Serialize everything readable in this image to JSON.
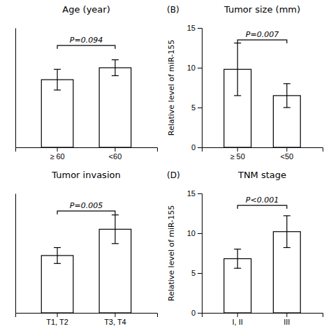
{
  "chart_data": [
    {
      "type": "bar",
      "title": "Age (year)",
      "categories": [
        "≥ 60",
        "<60"
      ],
      "values": [
        8.5,
        10.0
      ],
      "errors_up": [
        1.3,
        1.0
      ],
      "errors_down": [
        1.3,
        1.0
      ],
      "color": "#ffffff",
      "ylim": [
        0,
        15
      ],
      "tick_labels": "x",
      "annotations": [
        {
          "text": "P=0.094",
          "y": 12.8
        }
      ]
    },
    {
      "type": "bar",
      "title": "Tumor size (mm)",
      "label": "(B)",
      "categories": [
        "≥ 50",
        "<50"
      ],
      "values": [
        9.8,
        6.5
      ],
      "errors_up": [
        3.3,
        1.5
      ],
      "errors_down": [
        3.3,
        1.5
      ],
      "color": "#ffffff",
      "ylabel": "Relative level of miR-155",
      "ylim": [
        0,
        15
      ],
      "yticks": [
        0,
        5,
        10,
        15
      ],
      "annotations": [
        {
          "text": "P=0.007",
          "y": 13.5
        }
      ]
    },
    {
      "type": "bar",
      "title": "Tumor invasion",
      "categories": [
        "T1, T2",
        "T3, T4"
      ],
      "values": [
        7.2,
        10.5
      ],
      "errors_up": [
        1.0,
        1.8
      ],
      "errors_down": [
        1.0,
        1.8
      ],
      "color": "#ffffff",
      "ylim": [
        0,
        15
      ],
      "tick_labels": "x",
      "annotations": [
        {
          "text": "P=0.005",
          "y": 12.8
        }
      ]
    },
    {
      "type": "bar",
      "title": "TNM stage",
      "label": "(D)",
      "categories": [
        "I, II",
        "III"
      ],
      "values": [
        6.8,
        10.2
      ],
      "errors_up": [
        1.2,
        2.0
      ],
      "errors_down": [
        1.2,
        2.0
      ],
      "color": "#ffffff",
      "ylabel": "Relative level of miR-155",
      "ylim": [
        0,
        15
      ],
      "yticks": [
        0,
        5,
        10,
        15
      ],
      "annotations": [
        {
          "text": "P<0.001",
          "y": 13.5
        }
      ]
    }
  ]
}
